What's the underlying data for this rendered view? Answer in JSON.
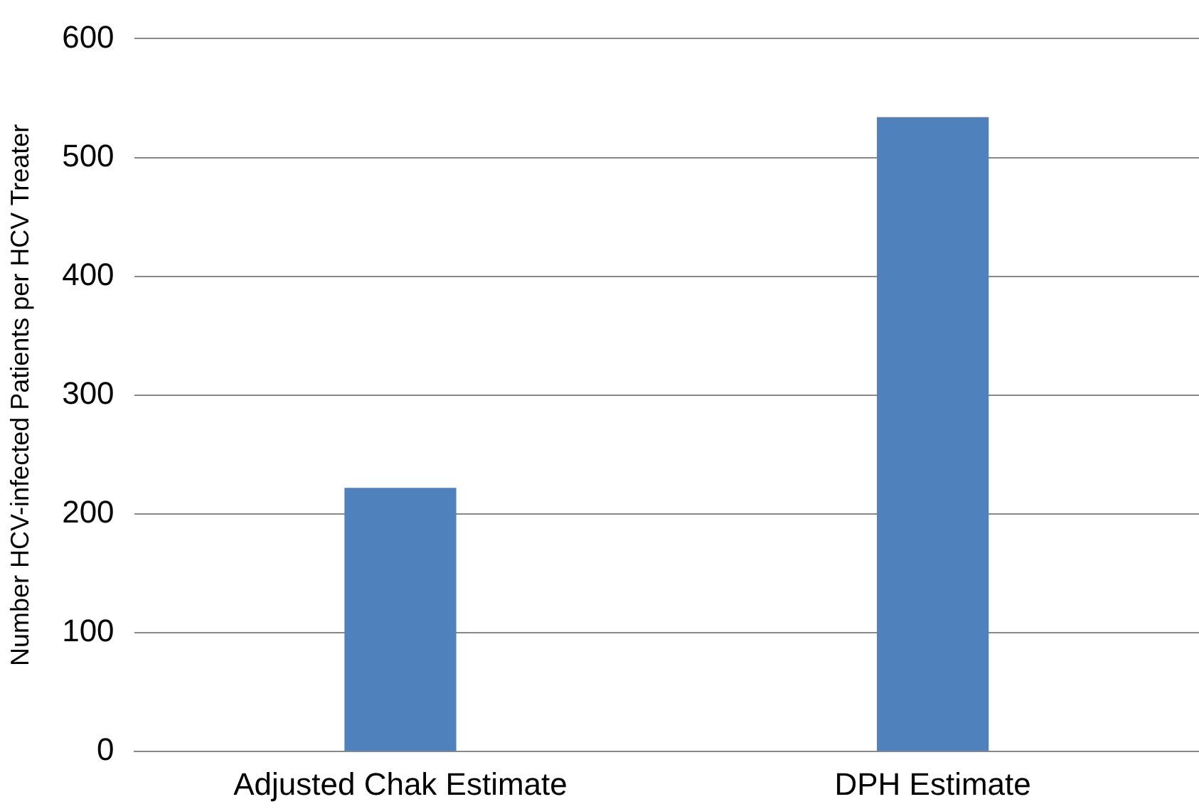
{
  "chart_data": {
    "type": "bar",
    "ylabel": "Number HCV-infected Patients per HCV Treater",
    "categories": [
      "Adjusted Chak Estimate",
      "DPH Estimate"
    ],
    "values": [
      222,
      534
    ],
    "color": "#4f81bd",
    "ylim": [
      0,
      600
    ],
    "yticks": [
      0,
      100,
      200,
      300,
      400,
      500,
      600
    ],
    "grid": "y",
    "legend": false
  }
}
